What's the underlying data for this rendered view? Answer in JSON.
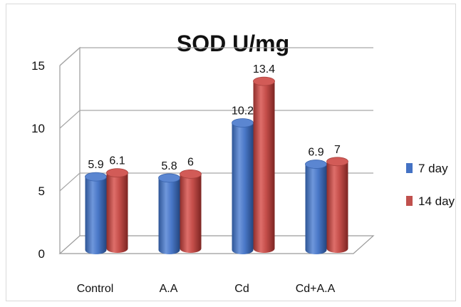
{
  "chart_data": {
    "type": "bar",
    "title": "SOD U/mg",
    "xlabel": "",
    "ylabel": "",
    "categories": [
      "Control",
      "A.A",
      "Cd",
      "Cd+A.A"
    ],
    "series": [
      {
        "name": "7 day",
        "values": [
          5.9,
          5.8,
          10.2,
          6.9
        ],
        "labels": [
          "5.9",
          "5.8",
          "10.2",
          "6.9"
        ],
        "color": "#4472c4"
      },
      {
        "name": "14 day",
        "values": [
          6.1,
          6,
          13.4,
          7
        ],
        "labels": [
          "6.1",
          "6",
          "13.4",
          "7"
        ],
        "color": "#c0504d"
      }
    ],
    "yticks": [
      "0",
      "5",
      "10",
      "15"
    ],
    "ylim": [
      0,
      15
    ],
    "grid": true,
    "style": "3d-cylinder",
    "legend_position": "right"
  }
}
